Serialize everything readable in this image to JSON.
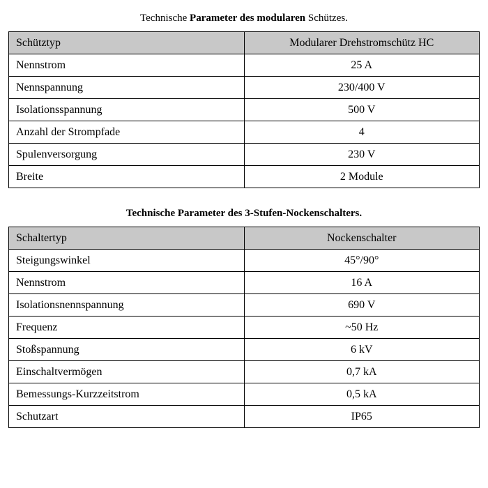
{
  "table1": {
    "title_prefix": "Technische ",
    "title_bold": "Parameter des modularen",
    "title_suffix": " Schützes.",
    "header_left": "Schütztyp",
    "header_right": "Modularer Drehstromschütz HC",
    "rows": [
      {
        "label": "Nennstrom",
        "value": "25 A"
      },
      {
        "label": "Nennspannung",
        "value": "230/400 V"
      },
      {
        "label": "Isolationsspannung",
        "value": "500 V"
      },
      {
        "label": "Anzahl der Strompfade",
        "value": "4"
      },
      {
        "label": "Spulenversorgung",
        "value": "230 V"
      },
      {
        "label": "Breite",
        "value": "2 Module"
      }
    ]
  },
  "table2": {
    "title_prefix": "",
    "title_bold": "Technische Parameter des 3-Stufen-Nockenschalters.",
    "title_suffix": "",
    "header_left": "Schaltertyp",
    "header_right": "Nockenschalter",
    "rows": [
      {
        "label": "Steigungswinkel",
        "value": "45°/90°"
      },
      {
        "label": "Nennstrom",
        "value": "16 A"
      },
      {
        "label": "Isolationsnennspannung",
        "value": "690 V"
      },
      {
        "label": "Frequenz",
        "value": "~50 Hz"
      },
      {
        "label": "Stoßspannung",
        "value": "6 kV"
      },
      {
        "label": "Einschaltvermögen",
        "value": "0,7 kA"
      },
      {
        "label": "Bemessungs-Kurzzeitstrom",
        "value": "0,5 kA"
      },
      {
        "label": "Schutzart",
        "value": "IP65"
      }
    ]
  },
  "styles": {
    "header_bg": "#c8c8c8",
    "border_color": "#000000",
    "font_family": "Georgia, Times New Roman, serif",
    "title_fontsize": 15,
    "cell_fontsize": 16,
    "column_split_percent": 50
  }
}
